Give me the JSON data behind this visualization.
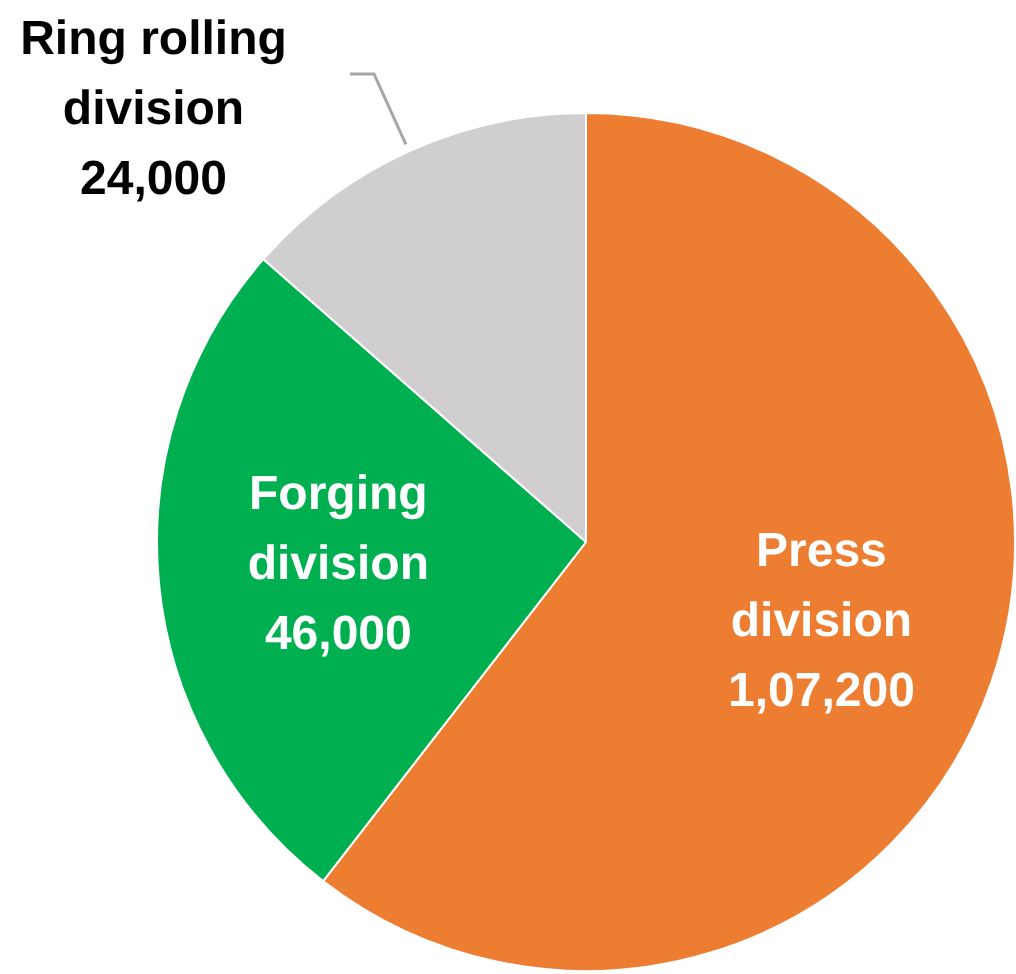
{
  "chart_data": {
    "type": "pie",
    "categories": [
      "Press division",
      "Forging division",
      "Ring rolling division"
    ],
    "values": [
      107200,
      46000,
      24000
    ],
    "colors": [
      "#ed7d31",
      "#00b050",
      "#d0cece"
    ],
    "value_labels": [
      "1,07,200",
      "46,000",
      "24,000"
    ],
    "legend": false
  }
}
